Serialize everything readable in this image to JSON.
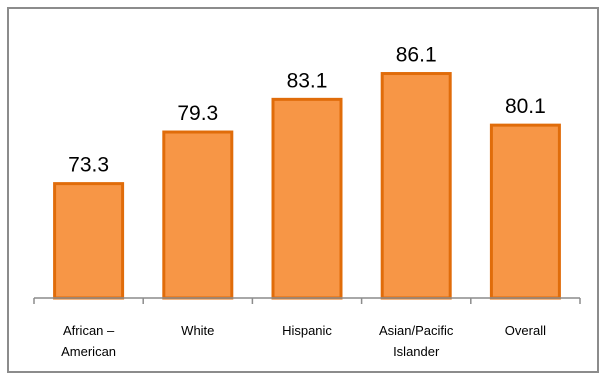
{
  "chart_data": {
    "type": "bar",
    "categories": [
      [
        "African –",
        "American"
      ],
      [
        "White"
      ],
      [
        "Hispanic"
      ],
      [
        "Asian/Pacific",
        "Islander"
      ],
      [
        "Overall"
      ]
    ],
    "values": [
      73.3,
      79.3,
      83.1,
      86.1,
      80.1
    ],
    "value_labels": [
      "73.3",
      "79.3",
      "83.1",
      "86.1",
      "80.1"
    ],
    "title": "",
    "xlabel": "",
    "ylabel": "",
    "ylim": [
      60,
      90
    ],
    "grid": false,
    "legend": "none",
    "colors": {
      "bar_fill": "#f79646",
      "bar_stroke": "#e06c0a",
      "axis": "#8c8c8c",
      "frame": "#8c8c8c"
    }
  }
}
